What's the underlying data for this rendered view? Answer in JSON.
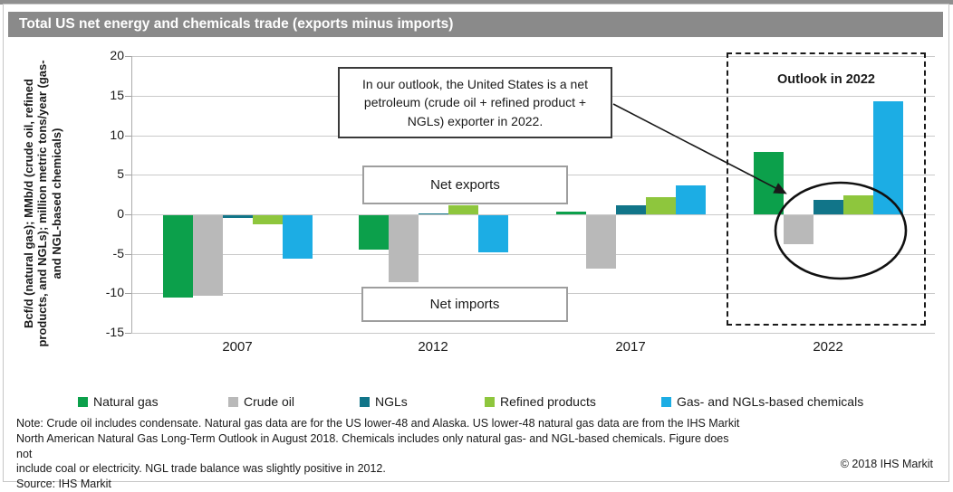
{
  "title": "Total US net energy and chemicals trade (exports minus imports)",
  "chart_data": {
    "type": "bar",
    "categories": [
      "2007",
      "2012",
      "2017",
      "2022"
    ],
    "series": [
      {
        "name": "Natural gas",
        "color": "#0ca04b",
        "values": [
          -10.4,
          -4.3,
          0.4,
          7.9
        ]
      },
      {
        "name": "Crude oil",
        "color": "#b9b9b9",
        "values": [
          -10.2,
          -8.5,
          -6.7,
          -3.7
        ]
      },
      {
        "name": "NGLs",
        "color": "#117589",
        "values": [
          -0.3,
          0.1,
          1.1,
          1.8
        ]
      },
      {
        "name": "Refined products",
        "color": "#8ec63d",
        "values": [
          -1.1,
          1.2,
          2.2,
          2.4
        ]
      },
      {
        "name": "Gas- and NGLs-based chemicals",
        "color": "#1cade4",
        "values": [
          -5.5,
          -4.7,
          3.7,
          14.3
        ]
      }
    ],
    "ylabel": "Bcf/d (natural gas); MMb/d (crude oil, refined products, and NGLs); million metric tons/year (gas- and NGL-based chemicals)",
    "ylim": [
      -15,
      20
    ],
    "yticks": [
      20,
      15,
      10,
      5,
      0,
      -5,
      -10,
      -15
    ],
    "grid": true,
    "legend_position": "bottom"
  },
  "annotations": {
    "callout": "In our outlook, the United States is a net petroleum (crude oil + refined product + NGLs) exporter in 2022.",
    "outlook_label": "Outlook in 2022",
    "net_exports": "Net exports",
    "net_imports": "Net imports"
  },
  "footer": {
    "note_lines": [
      "Note: Crude oil includes condensate. Natural gas data are for the US lower-48 and Alaska. US lower-48 natural gas data are from the IHS Markit",
      "North American Natural Gas Long-Term Outlook in August 2018. Chemicals includes only natural gas- and NGL-based chemicals. Figure does not",
      "include coal or electricity. NGL trade balance was slightly positive in 2012.",
      "Source: IHS Markit"
    ],
    "copyright": "© 2018 IHS Markit"
  }
}
